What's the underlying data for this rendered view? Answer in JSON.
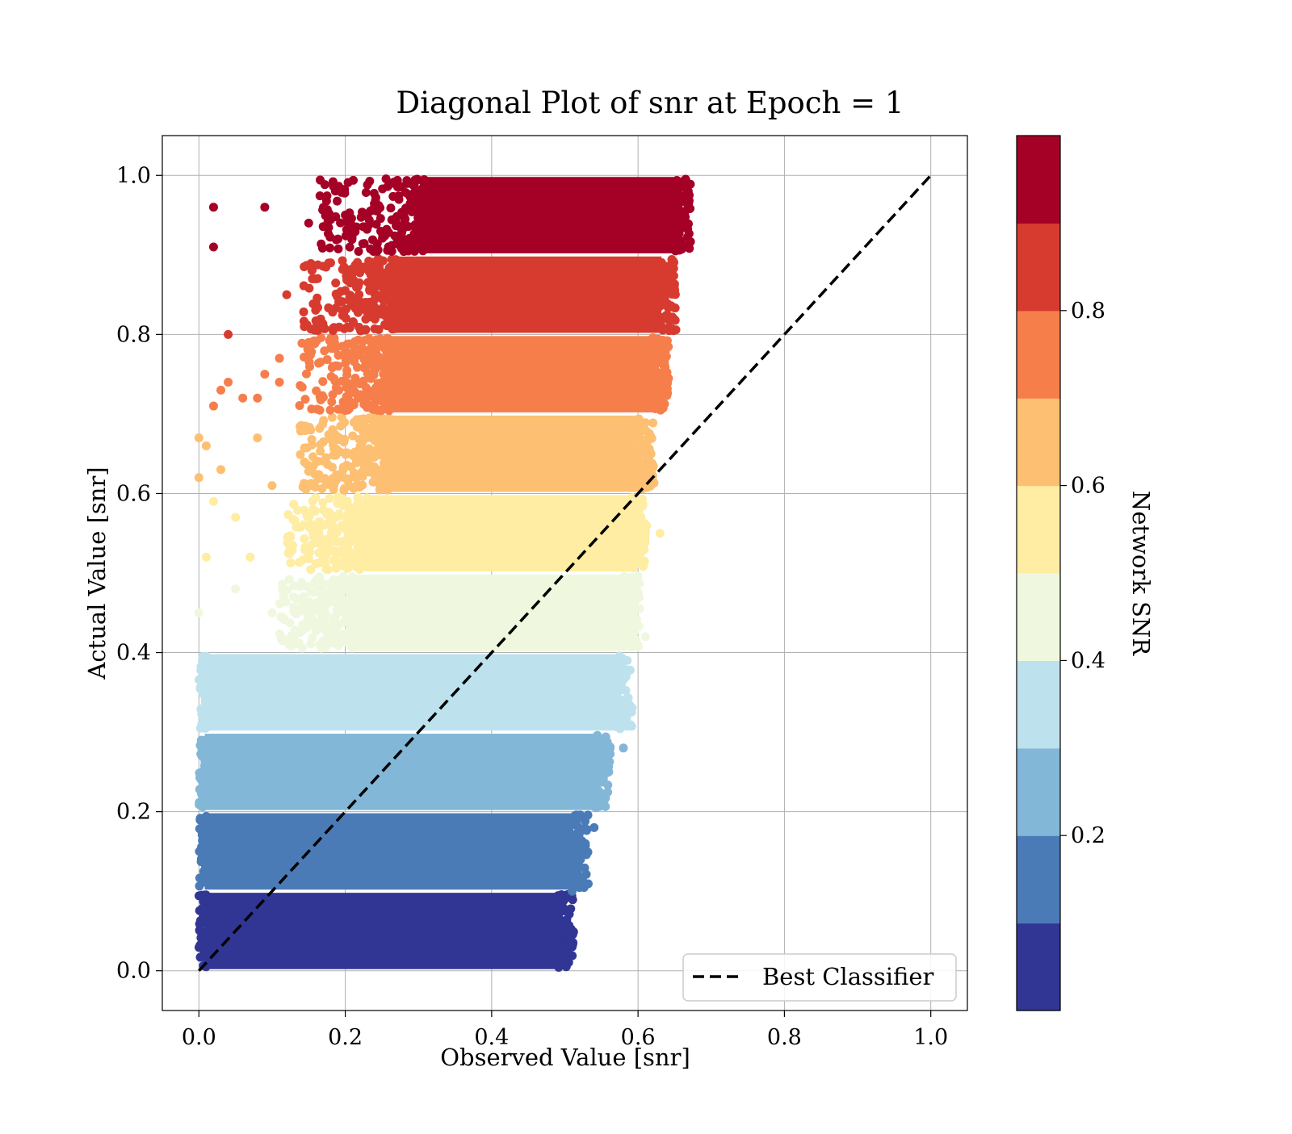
{
  "chart_data": {
    "type": "scatter",
    "title": "Diagonal Plot of snr at Epoch = 1",
    "xlabel": "Observed Value [snr]",
    "ylabel": "Actual Value [snr]",
    "xlim": [
      -0.05,
      1.05
    ],
    "ylim": [
      -0.05,
      1.05
    ],
    "x_ticks": [
      "0.0",
      "0.2",
      "0.4",
      "0.6",
      "0.8",
      "1.0"
    ],
    "y_ticks": [
      "0.0",
      "0.2",
      "0.4",
      "0.6",
      "0.8",
      "1.0"
    ],
    "grid": true,
    "legend": {
      "placement": "lower-right",
      "entries": [
        {
          "label": "Best Classifier",
          "style": "dashed",
          "color": "#000000"
        }
      ]
    },
    "reference_line": {
      "name": "Best Classifier",
      "x": [
        0.0,
        1.0
      ],
      "y": [
        0.0,
        1.0
      ],
      "style": "dashed"
    },
    "colorbar": {
      "label": "Network SNR",
      "ticks": [
        "0.2",
        "0.4",
        "0.6",
        "0.8"
      ],
      "tick_values": [
        0.2,
        0.4,
        0.6,
        0.8
      ],
      "range": [
        0.0,
        1.0
      ],
      "bin_colors": [
        "#313695",
        "#4a7bb7",
        "#82b7d7",
        "#bde2ee",
        "#eff8df",
        "#feeda2",
        "#fdbf71",
        "#f67e4b",
        "#d73a2f",
        "#a50026"
      ]
    },
    "bands": [
      {
        "y_range": [
          0.0,
          0.1
        ],
        "x_range": [
          0.0,
          0.5
        ],
        "color": "#313695"
      },
      {
        "y_range": [
          0.1,
          0.2
        ],
        "x_range": [
          0.0,
          0.52
        ],
        "color": "#4a7bb7"
      },
      {
        "y_range": [
          0.2,
          0.3
        ],
        "x_range": [
          0.0,
          0.55
        ],
        "color": "#82b7d7"
      },
      {
        "y_range": [
          0.3,
          0.4
        ],
        "x_range": [
          0.0,
          0.58
        ],
        "color": "#bde2ee"
      },
      {
        "y_range": [
          0.4,
          0.5
        ],
        "x_range": [
          0.2,
          0.59
        ],
        "color": "#eff8df"
      },
      {
        "y_range": [
          0.5,
          0.6
        ],
        "x_range": [
          0.22,
          0.6
        ],
        "color": "#feeda2"
      },
      {
        "y_range": [
          0.6,
          0.7
        ],
        "x_range": [
          0.25,
          0.61
        ],
        "color": "#fdbf71"
      },
      {
        "y_range": [
          0.7,
          0.8
        ],
        "x_range": [
          0.25,
          0.63
        ],
        "color": "#f67e4b"
      },
      {
        "y_range": [
          0.8,
          0.9
        ],
        "x_range": [
          0.26,
          0.64
        ],
        "color": "#d73a2f"
      },
      {
        "y_range": [
          0.9,
          1.0
        ],
        "x_range": [
          0.3,
          0.66
        ],
        "color": "#a50026"
      }
    ],
    "outliers": [
      {
        "x": 0.02,
        "y": 0.96
      },
      {
        "x": 0.09,
        "y": 0.96
      },
      {
        "x": 0.02,
        "y": 0.91
      },
      {
        "x": 0.15,
        "y": 0.94
      },
      {
        "x": 0.2,
        "y": 0.95
      },
      {
        "x": 0.19,
        "y": 0.92
      },
      {
        "x": 0.12,
        "y": 0.85
      },
      {
        "x": 0.16,
        "y": 0.84
      },
      {
        "x": 0.18,
        "y": 0.89
      },
      {
        "x": 0.17,
        "y": 0.81
      },
      {
        "x": 0.04,
        "y": 0.8
      },
      {
        "x": 0.15,
        "y": 0.79
      },
      {
        "x": 0.11,
        "y": 0.77
      },
      {
        "x": 0.09,
        "y": 0.75
      },
      {
        "x": 0.11,
        "y": 0.74
      },
      {
        "x": 0.04,
        "y": 0.74
      },
      {
        "x": 0.03,
        "y": 0.73
      },
      {
        "x": 0.08,
        "y": 0.72
      },
      {
        "x": 0.06,
        "y": 0.72
      },
      {
        "x": 0.02,
        "y": 0.71
      },
      {
        "x": 0.0,
        "y": 0.67
      },
      {
        "x": 0.01,
        "y": 0.66
      },
      {
        "x": 0.08,
        "y": 0.67
      },
      {
        "x": 0.14,
        "y": 0.68
      },
      {
        "x": 0.03,
        "y": 0.63
      },
      {
        "x": 0.0,
        "y": 0.62
      },
      {
        "x": 0.1,
        "y": 0.61
      },
      {
        "x": 0.05,
        "y": 0.57
      },
      {
        "x": 0.02,
        "y": 0.59
      },
      {
        "x": 0.01,
        "y": 0.52
      },
      {
        "x": 0.07,
        "y": 0.52
      },
      {
        "x": 0.63,
        "y": 0.55
      },
      {
        "x": 0.0,
        "y": 0.45
      },
      {
        "x": 0.05,
        "y": 0.48
      },
      {
        "x": 0.1,
        "y": 0.45
      },
      {
        "x": 0.61,
        "y": 0.42
      },
      {
        "x": 0.58,
        "y": 0.28
      },
      {
        "x": 0.56,
        "y": 0.25
      },
      {
        "x": 0.54,
        "y": 0.18
      },
      {
        "x": 0.51,
        "y": 0.1
      },
      {
        "x": 0.51,
        "y": 0.03
      }
    ]
  }
}
